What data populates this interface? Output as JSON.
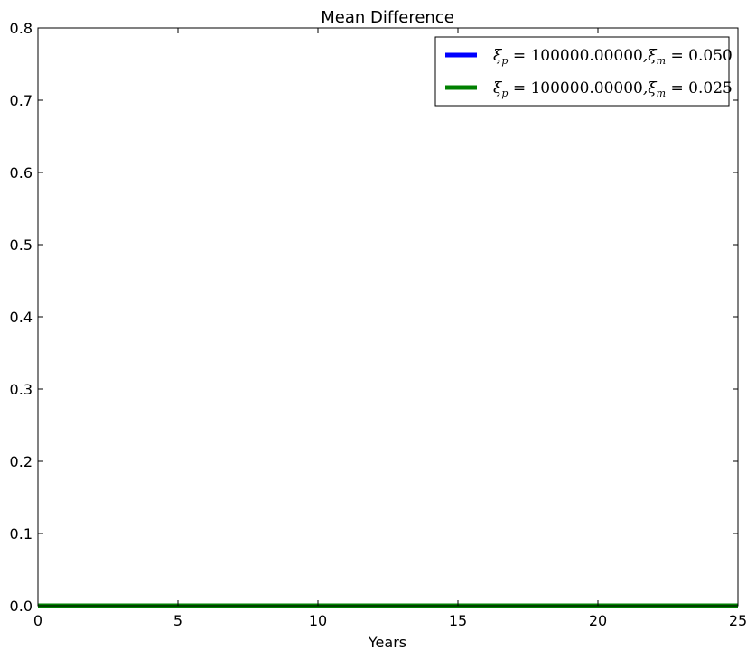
{
  "chart_data": {
    "type": "line",
    "title": "Mean Difference",
    "xlabel": "Years",
    "ylabel": "",
    "xlim": [
      0,
      25
    ],
    "ylim": [
      0,
      0.8
    ],
    "xticks": [
      0,
      5,
      10,
      15,
      20,
      25
    ],
    "yticks": [
      0.0,
      0.1,
      0.2,
      0.3,
      0.4,
      0.5,
      0.6,
      0.7,
      0.8
    ],
    "xtick_labels": [
      "0",
      "5",
      "10",
      "15",
      "20",
      "25"
    ],
    "ytick_labels": [
      "0.0",
      "0.1",
      "0.2",
      "0.3",
      "0.4",
      "0.5",
      "0.6",
      "0.7",
      "0.8"
    ],
    "grid": false,
    "legend_position": "top-right",
    "x": [
      0,
      25
    ],
    "series": [
      {
        "name": "ξp = 100000.00000,ξm = 0.050",
        "label_parts": {
          "xi_p_value": "100000.00000",
          "xi_m_value": "0.050"
        },
        "color": "#0000ff",
        "values": [
          0,
          0
        ]
      },
      {
        "name": "ξp = 100000.00000,ξm = 0.025",
        "label_parts": {
          "xi_p_value": "100000.00000",
          "xi_m_value": "0.025"
        },
        "color": "#008000",
        "values": [
          0,
          0
        ]
      }
    ]
  }
}
